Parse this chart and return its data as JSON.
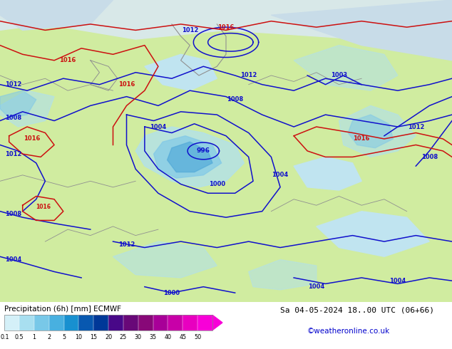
{
  "legend_label": "Precipitation (6h) [mm] ECMWF",
  "date_label": "Sa 04-05-2024 18..00 UTC (06+66)",
  "credit": "©weatheronline.co.uk",
  "colorbar_values": [
    "0.1",
    "0.5",
    "1",
    "2",
    "5",
    "10",
    "15",
    "20",
    "25",
    "30",
    "35",
    "40",
    "45",
    "50"
  ],
  "colorbar_colors": [
    "#d4f0f8",
    "#a8dff0",
    "#78c8e8",
    "#48b0e0",
    "#1890d0",
    "#0858b0",
    "#003898",
    "#480888",
    "#680878",
    "#880878",
    "#a80098",
    "#c800a8",
    "#e800c0",
    "#f800d8"
  ],
  "slp_blue": "#1010cc",
  "slp_red": "#cc1010",
  "land_light": "#d0eca0",
  "land_mid": "#b8e080",
  "sea_light": "#c0e4f0",
  "sea_darker": "#a0d0e4",
  "precip_light": "#b0e0f0",
  "precip_mid": "#80c8e8",
  "precip_dark": "#50a8d8",
  "bg_arctic": "#e0eeee",
  "fig_width": 6.34,
  "fig_height": 4.9
}
